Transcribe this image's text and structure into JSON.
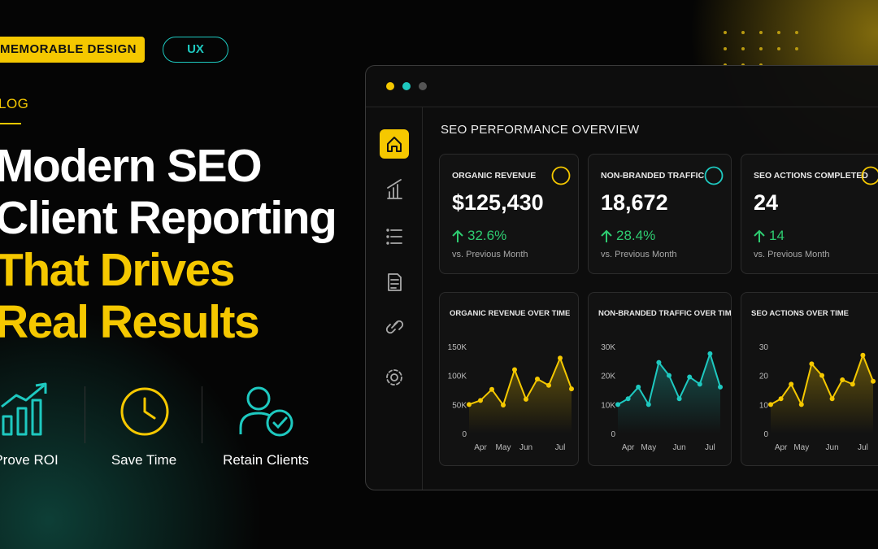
{
  "tags": [
    "MEMORABLE DESIGN",
    "UX"
  ],
  "category": "LOG",
  "headline": {
    "lines": [
      "Modern SEO",
      "Client Reporting",
      "That Drives",
      "Real Results"
    ]
  },
  "features": [
    "Prove ROI",
    "Save Time",
    "Retain Clients"
  ],
  "dashboard": {
    "title": "SEO PERFORMANCE OVERVIEW",
    "kpis": [
      {
        "label": "ORGANIC REVENUE",
        "value": "$125,430",
        "change": "32.6%",
        "note": "vs. Previous Month"
      },
      {
        "label": "NON-BRANDED TRAFFIC",
        "value": "18,672",
        "change": "28.4%",
        "note": "vs. Previous Month"
      },
      {
        "label": "SEO ACTIONS COMPLETED",
        "value": "24",
        "change": "14",
        "note": "vs. Previous Month"
      }
    ]
  },
  "chart_data": [
    {
      "type": "line",
      "title": "ORGANIC REVENUE OVER TIME",
      "color": "#f5c800",
      "categories": [
        null,
        "Apr",
        null,
        "May",
        null,
        "Jun",
        null,
        null,
        "Jul",
        null
      ],
      "values": [
        50000,
        57000,
        76000,
        49000,
        110000,
        59000,
        94000,
        83000,
        130000,
        77000
      ],
      "ylim": [
        0,
        150000
      ],
      "yticks": [
        0,
        {
          "value": 50000,
          "label": "50K"
        },
        {
          "value": 100000,
          "label": "100K"
        },
        {
          "value": 150000,
          "label": "150K"
        }
      ]
    },
    {
      "type": "line",
      "title": "NON-BRANDED TRAFFIC OVER TIME",
      "color": "#1ec9c0",
      "categories": [
        null,
        "Apr",
        null,
        "May",
        null,
        null,
        "Jun",
        null,
        null,
        "Jul",
        null
      ],
      "values": [
        10000,
        12000,
        16000,
        10000,
        24500,
        20000,
        12000,
        19500,
        17000,
        27500,
        16000
      ],
      "ylim": [
        0,
        30000
      ],
      "yticks": [
        0,
        {
          "value": 10000,
          "label": "10K"
        },
        {
          "value": 20000,
          "label": "20K"
        },
        {
          "value": 30000,
          "label": "30K"
        }
      ]
    },
    {
      "type": "line",
      "title": "SEO ACTIONS OVER TIME",
      "color": "#f5c800",
      "categories": [
        null,
        "Apr",
        null,
        "May",
        null,
        null,
        "Jun",
        null,
        null,
        "Jul",
        null
      ],
      "values": [
        10,
        12,
        17,
        10,
        24,
        20,
        12,
        18.5,
        17,
        27,
        18
      ],
      "ylim": [
        0,
        30
      ],
      "yticks": [
        0,
        10,
        20,
        30
      ]
    }
  ]
}
